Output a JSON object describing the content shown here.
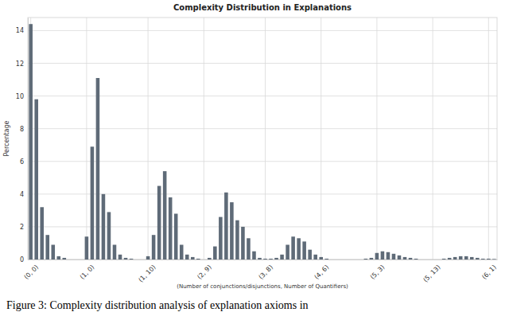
{
  "chart_data": {
    "type": "bar",
    "title": "Complexity Distribution in Explanations",
    "x_label": "(Number of conjunctions/disjunctions, Number of Quantifiers)",
    "y_label": "Percentage",
    "caption": "Figure 3: Complexity distribution analysis of explanation axioms in",
    "categories": [
      "(0, 0)",
      null,
      null,
      null,
      null,
      null,
      null,
      null,
      null,
      null,
      "(1, 0)",
      null,
      null,
      null,
      null,
      null,
      null,
      null,
      null,
      null,
      null,
      "(1, 10)",
      null,
      null,
      null,
      null,
      null,
      null,
      null,
      null,
      null,
      "(2, 9)",
      null,
      null,
      null,
      null,
      null,
      null,
      null,
      null,
      null,
      null,
      "(3, 8)",
      null,
      null,
      null,
      null,
      null,
      null,
      null,
      null,
      null,
      "(4, 6)",
      null,
      null,
      null,
      null,
      null,
      null,
      null,
      null,
      null,
      "(5, 3)",
      null,
      null,
      null,
      null,
      null,
      null,
      null,
      null,
      null,
      "(5, 13)",
      null,
      null,
      null,
      null,
      null,
      null,
      null,
      null,
      null,
      "(6, 1)",
      null
    ],
    "values": [
      14.4,
      9.8,
      3.2,
      1.5,
      0.9,
      0.2,
      0.1,
      0,
      0,
      0,
      1.4,
      6.9,
      11.1,
      4.0,
      2.9,
      0.9,
      0.3,
      0.1,
      0.05,
      0,
      0,
      0.2,
      1.5,
      4.5,
      5.4,
      3.8,
      2.8,
      0.9,
      0.3,
      0.15,
      0.05,
      0,
      0.1,
      0.8,
      2.6,
      4.1,
      3.5,
      2.4,
      2.0,
      1.3,
      0.5,
      0.1,
      0.05,
      0.05,
      0.1,
      0.3,
      0.9,
      1.4,
      1.3,
      1.1,
      0.6,
      0.3,
      0.15,
      0.05,
      0,
      0,
      0,
      0,
      0,
      0,
      0.05,
      0.1,
      0.4,
      0.5,
      0.45,
      0.35,
      0.25,
      0.15,
      0.1,
      0.05,
      0,
      0,
      0,
      0,
      0.05,
      0.1,
      0.15,
      0.2,
      0.2,
      0.15,
      0.1,
      0.05,
      0.05,
      0.03
    ],
    "color": "#5f6b78",
    "ylim": [
      0,
      14.8
    ],
    "yticks": [
      0,
      2,
      4,
      6,
      8,
      10,
      12,
      14
    ],
    "grid": true
  }
}
